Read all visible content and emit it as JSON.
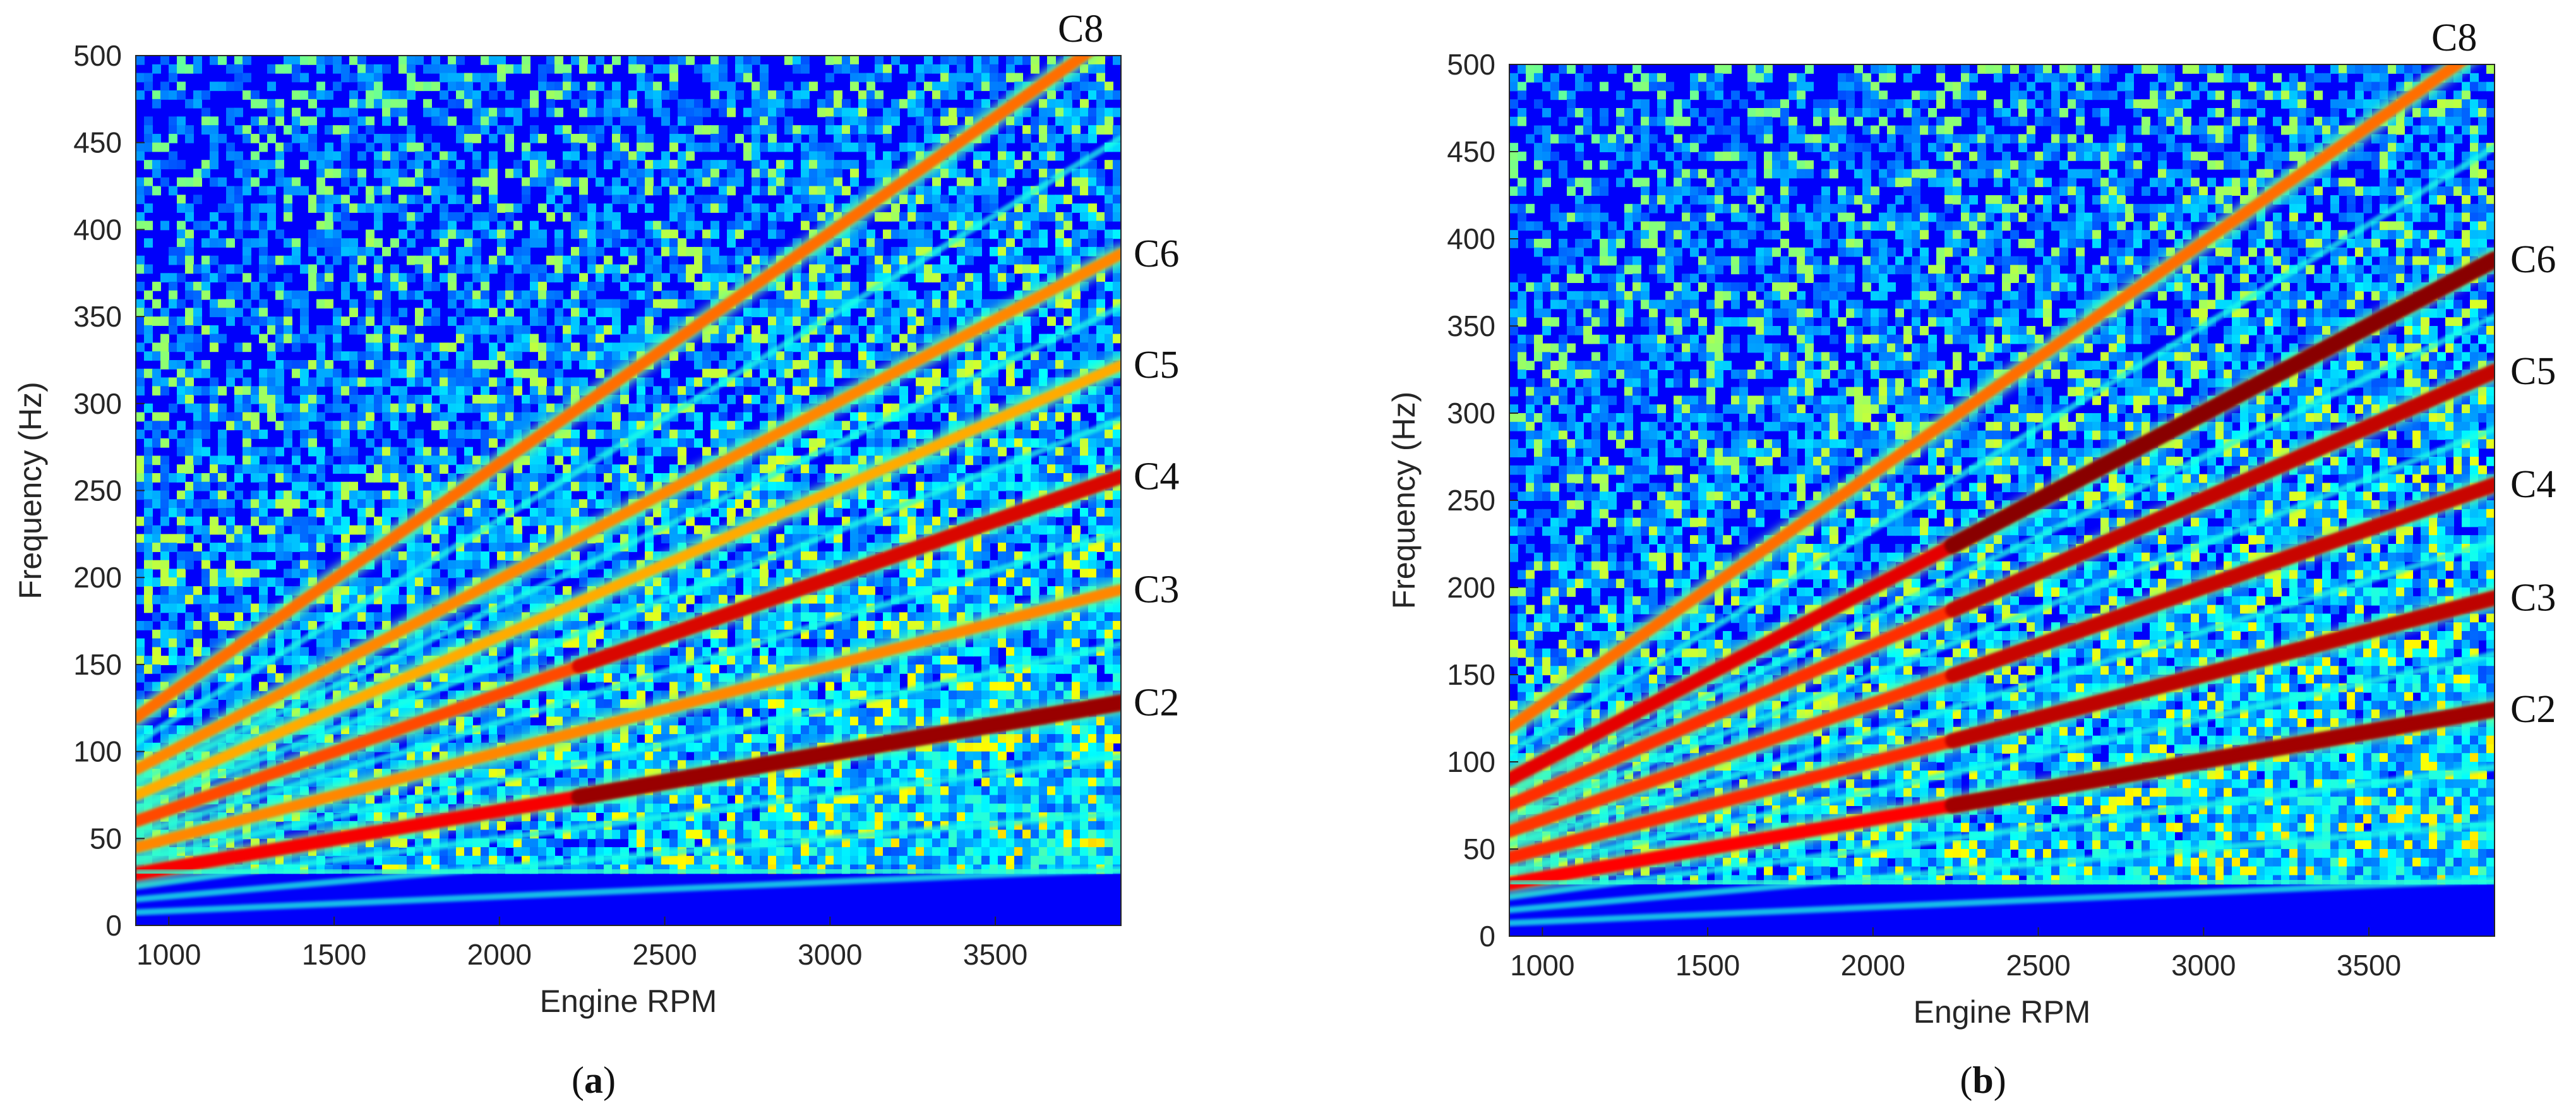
{
  "chart_data": [
    {
      "type": "heatmap",
      "panel_label": "a",
      "xlabel": "Engine RPM",
      "ylabel": "Frequency (Hz)",
      "xlim": [
        900,
        3880
      ],
      "ylim": [
        0,
        500
      ],
      "x_ticks": [
        1000,
        1500,
        2000,
        2500,
        3000,
        3500
      ],
      "y_ticks": [
        0,
        50,
        100,
        150,
        200,
        250,
        300,
        350,
        400,
        450,
        500
      ],
      "colormap": "jet",
      "order_lines": [
        {
          "name": "C2",
          "label_freq": 128,
          "intensity": 0.95
        },
        {
          "name": "C3",
          "label_freq": 193,
          "intensity": 0.55
        },
        {
          "name": "C4",
          "label_freq": 258,
          "intensity": 0.72
        },
        {
          "name": "C5",
          "label_freq": 322,
          "intensity": 0.45
        },
        {
          "name": "C6",
          "label_freq": 386,
          "intensity": 0.55
        },
        {
          "name": "C8",
          "label_freq": 515,
          "intensity": 0.62
        }
      ]
    },
    {
      "type": "heatmap",
      "panel_label": "b",
      "xlabel": "Engine RPM",
      "ylabel": "Frequency (Hz)",
      "xlim": [
        900,
        3880
      ],
      "ylim": [
        0,
        500
      ],
      "x_ticks": [
        1000,
        1500,
        2000,
        2500,
        3000,
        3500
      ],
      "y_ticks": [
        0,
        50,
        100,
        150,
        200,
        250,
        300,
        350,
        400,
        450,
        500
      ],
      "colormap": "jet",
      "order_lines": [
        {
          "name": "C2",
          "label_freq": 130,
          "intensity": 0.92
        },
        {
          "name": "C3",
          "label_freq": 194,
          "intensity": 0.82
        },
        {
          "name": "C4",
          "label_freq": 259,
          "intensity": 0.78
        },
        {
          "name": "C5",
          "label_freq": 324,
          "intensity": 0.8
        },
        {
          "name": "C6",
          "label_freq": 388,
          "intensity": 1.0
        },
        {
          "name": "C8",
          "label_freq": 515,
          "intensity": 0.62
        }
      ]
    }
  ]
}
